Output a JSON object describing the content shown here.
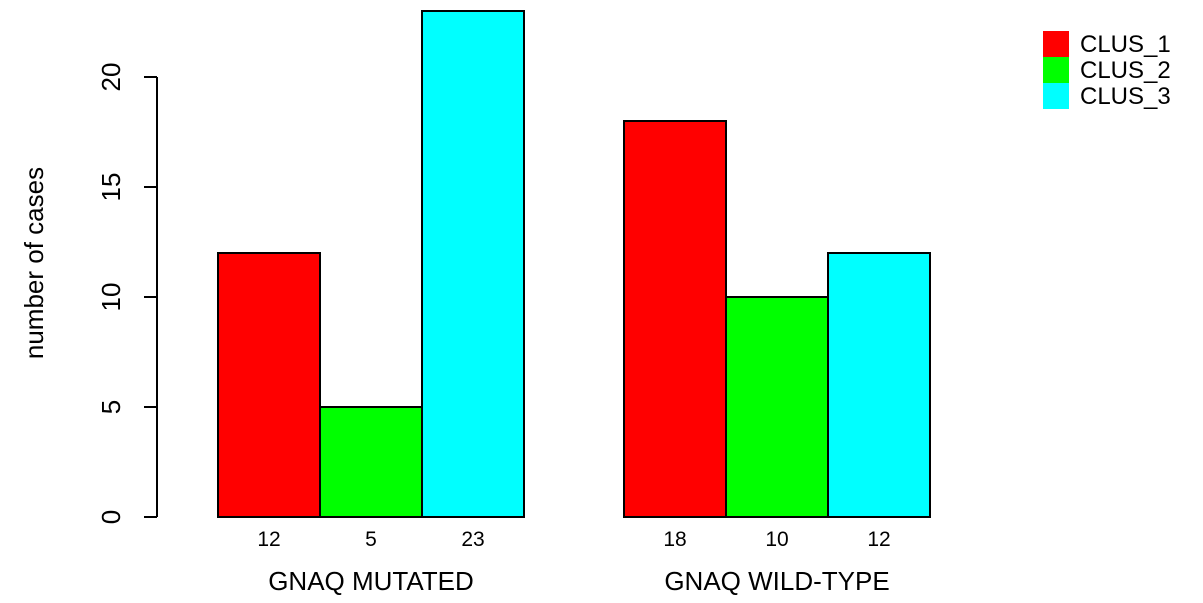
{
  "chart_data": {
    "type": "bar",
    "layout": "grouped",
    "title": "",
    "xlabel": "",
    "ylabel": "number of cases",
    "ylim": [
      0,
      23
    ],
    "yticks": [
      0,
      5,
      10,
      15,
      20
    ],
    "grid": false,
    "legend_position": "top-right",
    "categories": [
      "GNAQ MUTATED",
      "GNAQ WILD-TYPE"
    ],
    "series": [
      {
        "name": "CLUS_1",
        "color": "#ff0000",
        "values": [
          12,
          18
        ]
      },
      {
        "name": "CLUS_2",
        "color": "#00ff00",
        "values": [
          5,
          10
        ]
      },
      {
        "name": "CLUS_3",
        "color": "#00ffff",
        "values": [
          23,
          12
        ]
      }
    ],
    "show_value_labels": true
  }
}
